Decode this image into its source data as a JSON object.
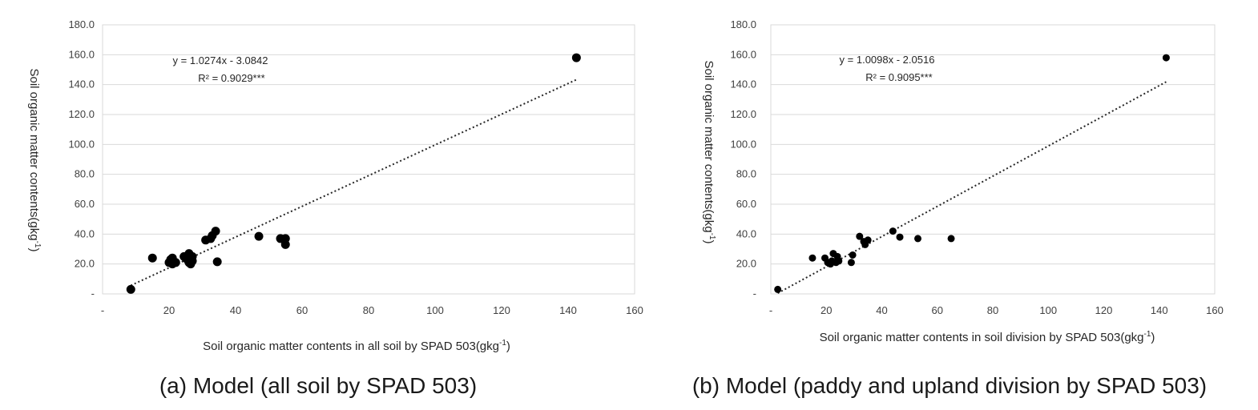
{
  "chart_data": [
    {
      "type": "scatter",
      "caption": "(a) Model (all soil by SPAD 503)",
      "xlabel_main": "Soil organic matter contents in all soil by SPAD 503(gkg",
      "xlabel_sup": "-1",
      "xlabel_end": ")",
      "ylabel_main": "Soil organic matter contents(gkg",
      "ylabel_sup": "-1",
      "ylabel_end": ")",
      "equation": "y = 1.0274x - 3.0842",
      "r2": "R² = 0.9029***",
      "xlim": [
        0,
        160
      ],
      "ylim": [
        0,
        180
      ],
      "x_ticks": [
        "-",
        "20",
        "40",
        "60",
        "80",
        "100",
        "120",
        "140",
        "160"
      ],
      "y_ticks": [
        "-",
        "20.0",
        "40.0",
        "60.0",
        "80.0",
        "100.0",
        "120.0",
        "140.0",
        "160.0",
        "180.0"
      ],
      "trendline": {
        "slope": 1.0274,
        "intercept": -3.0842,
        "x_range": [
          8.5,
          142.5
        ]
      },
      "marker_size": "large",
      "points": [
        [
          8.5,
          3.0
        ],
        [
          15.0,
          24.0
        ],
        [
          20.0,
          21.0
        ],
        [
          20.5,
          23.0
        ],
        [
          21.0,
          24.0
        ],
        [
          21.0,
          20.0
        ],
        [
          21.5,
          21.0
        ],
        [
          22.0,
          21.0
        ],
        [
          24.5,
          25.0
        ],
        [
          25.0,
          24.0
        ],
        [
          25.5,
          23.0
        ],
        [
          26.0,
          27.0
        ],
        [
          26.0,
          21.0
        ],
        [
          26.5,
          20.0
        ],
        [
          27.0,
          22.0
        ],
        [
          27.0,
          25.0
        ],
        [
          31.0,
          36.0
        ],
        [
          32.5,
          37.0
        ],
        [
          33.0,
          39.0
        ],
        [
          34.0,
          42.0
        ],
        [
          34.5,
          21.5
        ],
        [
          47.0,
          38.5
        ],
        [
          53.5,
          37.0
        ],
        [
          55.0,
          37.0
        ],
        [
          55.0,
          33.0
        ],
        [
          142.5,
          158.0
        ]
      ]
    },
    {
      "type": "scatter",
      "caption": "(b) Model (paddy and upland division by SPAD 503)",
      "xlabel_main": "Soil organic matter contents in soil division by SPAD 503(gkg",
      "xlabel_sup": "-1",
      "xlabel_end": ")",
      "ylabel_main": "Soil organic matter contents(gkg",
      "ylabel_sup": "-1",
      "ylabel_end": ")",
      "equation": "y = 1.0098x - 2.0516",
      "r2": "R² = 0.9095***",
      "xlim": [
        0,
        160
      ],
      "ylim": [
        0,
        180
      ],
      "x_ticks": [
        "-",
        "20",
        "40",
        "60",
        "80",
        "100",
        "120",
        "140",
        "160"
      ],
      "y_ticks": [
        "-",
        "20.0",
        "40.0",
        "60.0",
        "80.0",
        "100.0",
        "120.0",
        "140.0",
        "160.0",
        "180.0"
      ],
      "trendline": {
        "slope": 1.0098,
        "intercept": -2.0516,
        "x_range": [
          2.5,
          142.5
        ]
      },
      "marker_size": "small",
      "points": [
        [
          2.5,
          3.0
        ],
        [
          15.0,
          24.0
        ],
        [
          19.5,
          24.0
        ],
        [
          20.5,
          21.0
        ],
        [
          21.5,
          20.0
        ],
        [
          22.0,
          22.0
        ],
        [
          22.5,
          27.0
        ],
        [
          23.5,
          21.0
        ],
        [
          24.0,
          25.0
        ],
        [
          24.5,
          22.0
        ],
        [
          29.0,
          21.0
        ],
        [
          29.5,
          26.0
        ],
        [
          32.0,
          38.5
        ],
        [
          33.5,
          35.0
        ],
        [
          34.0,
          33.0
        ],
        [
          35.0,
          36.0
        ],
        [
          44.0,
          42.0
        ],
        [
          46.5,
          38.0
        ],
        [
          53.0,
          37.0
        ],
        [
          65.0,
          37.0
        ],
        [
          142.5,
          158.0
        ]
      ]
    }
  ]
}
